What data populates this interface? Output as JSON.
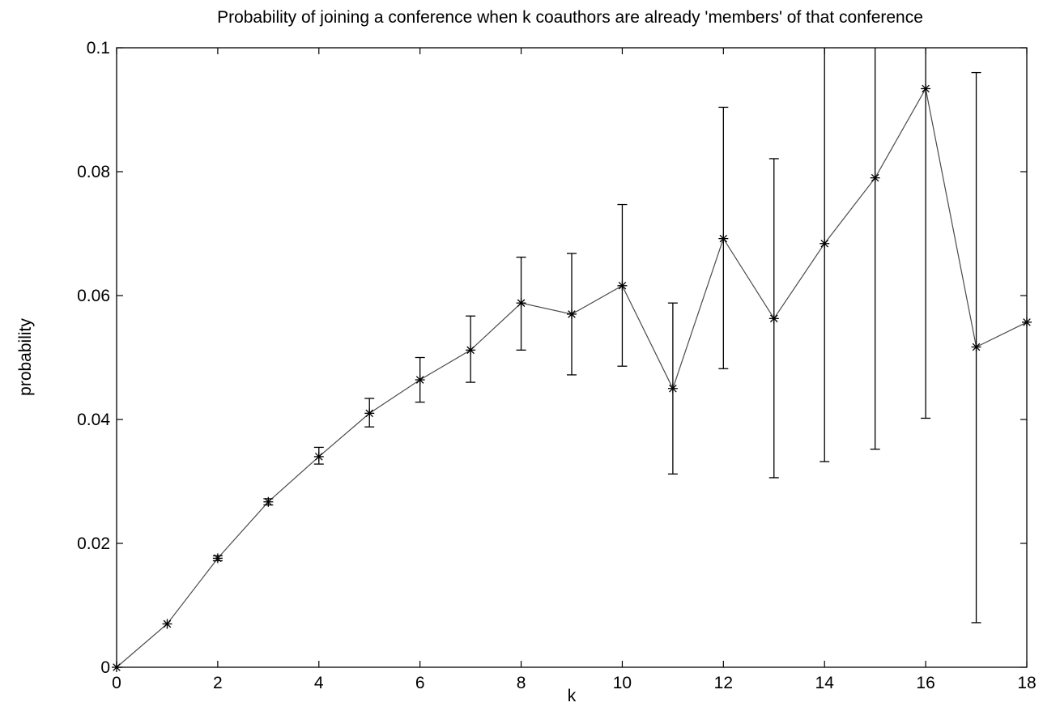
{
  "chart_data": {
    "type": "line",
    "title": "Probability of joining a conference when k coauthors are already 'members' of that conference",
    "xlabel": "k",
    "ylabel": "probability",
    "xlim": [
      0,
      18
    ],
    "ylim": [
      0,
      0.1
    ],
    "x_ticks": [
      0,
      2,
      4,
      6,
      8,
      10,
      12,
      14,
      16,
      18
    ],
    "y_ticks": [
      0,
      0.02,
      0.04,
      0.06,
      0.08,
      0.1
    ],
    "y_tick_labels": [
      "0",
      "0.02",
      "0.04",
      "0.06",
      "0.08",
      "0.1"
    ],
    "grid": false,
    "legend": "none",
    "marker": "asterisk",
    "line_color": "#4a4a4a",
    "errorbar_color": "#000000",
    "series": [
      {
        "x": [
          0,
          1,
          2,
          3,
          4,
          5,
          6,
          7,
          8,
          9,
          10,
          11,
          12,
          13,
          14,
          15,
          16,
          17,
          18
        ],
        "y": [
          0.0,
          0.007,
          0.0176,
          0.0267,
          0.034,
          0.041,
          0.0464,
          0.0512,
          0.0588,
          0.057,
          0.0616,
          0.045,
          0.0692,
          0.0563,
          0.0684,
          0.079,
          0.0934,
          0.0517,
          0.0557
        ],
        "err_low": [
          null,
          null,
          0.0172,
          0.0262,
          0.0328,
          0.0388,
          0.0428,
          0.046,
          0.0512,
          0.0472,
          0.0486,
          0.0312,
          0.0482,
          0.0306,
          0.0332,
          0.0352,
          0.0402,
          0.0072,
          null
        ],
        "err_high": [
          null,
          null,
          0.018,
          0.0272,
          0.0355,
          0.0434,
          0.05,
          0.0567,
          0.0662,
          0.0668,
          0.0747,
          0.0588,
          0.0904,
          0.0821,
          0.1,
          0.1,
          0.1,
          0.096,
          null
        ]
      }
    ]
  }
}
